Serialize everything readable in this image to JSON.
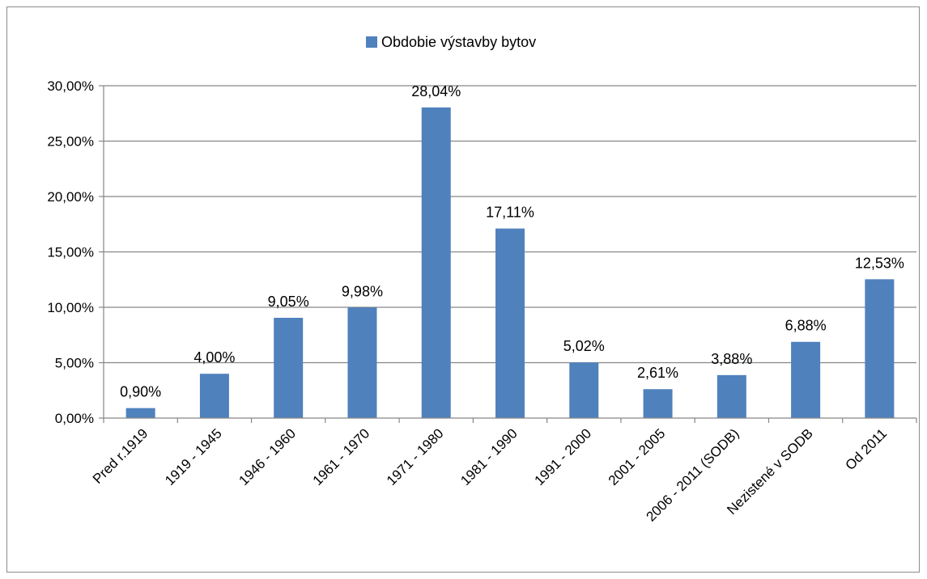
{
  "chart_data": {
    "type": "bar",
    "categories": [
      "Pred r.1919",
      "1919 - 1945",
      "1946 - 1960",
      "1961 - 1970",
      "1971 - 1980",
      "1981 - 1990",
      "1991 - 2000",
      "2001 - 2005",
      "2006 - 2011 (SODB)",
      "Nezistené v SODB",
      "Od 2011"
    ],
    "series": [
      {
        "name": "Obdobie výstavby bytov",
        "values": [
          0.9,
          4.0,
          9.05,
          9.98,
          28.04,
          17.11,
          5.02,
          2.61,
          3.88,
          6.88,
          12.53
        ],
        "data_labels": [
          "0,90%",
          "4,00%",
          "9,05%",
          "9,98%",
          "28,04%",
          "17,11%",
          "5,02%",
          "2,61%",
          "3,88%",
          "6,88%",
          "12,53%"
        ],
        "color": "#4f81bd"
      }
    ],
    "ylim": [
      0,
      30
    ],
    "yticks": [
      0,
      5,
      10,
      15,
      20,
      25,
      30
    ],
    "ytick_labels": [
      "0,00%",
      "5,00%",
      "10,00%",
      "15,00%",
      "20,00%",
      "25,00%",
      "30,00%"
    ],
    "grid": true,
    "legend_position": "top-center",
    "title": "",
    "xlabel": "",
    "ylabel": ""
  },
  "colors": {
    "bar": "#4f81bd",
    "grid": "#868686",
    "axis": "#868686"
  }
}
